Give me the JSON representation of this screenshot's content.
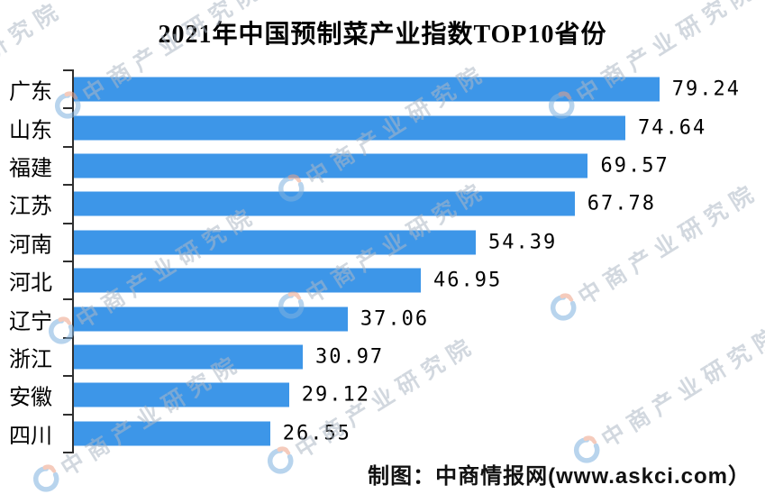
{
  "title": "2021年中国预制菜产业指数TOP10省份",
  "chart_data": {
    "type": "bar",
    "orientation": "horizontal",
    "title": "2021年中国预制菜产业指数TOP10省份",
    "categories": [
      "广东",
      "山东",
      "福建",
      "江苏",
      "河南",
      "河北",
      "辽宁",
      "浙江",
      "安徽",
      "四川"
    ],
    "values": [
      79.24,
      74.64,
      69.57,
      67.78,
      54.39,
      46.95,
      37.06,
      30.97,
      29.12,
      26.55
    ],
    "value_labels": [
      "79.24",
      "74.64",
      "69.57",
      "67.78",
      "54.39",
      "46.95",
      "37.06",
      "30.97",
      "29.12",
      "26.55"
    ],
    "xlabel": "",
    "ylabel": "",
    "xlim_estimated": [
      0,
      91
    ],
    "grid": false,
    "legend": false,
    "bar_color": "#3d96e8",
    "sort": "descending"
  },
  "footer": {
    "credit": "制图：中商情报网(www.askci.com）"
  },
  "watermark": {
    "text": "中商产业研究院",
    "logo": "askci-logo"
  },
  "colors": {
    "bar": "#3d96e8",
    "axis": "#2f2f2f",
    "text": "#000000",
    "watermark": "#b9c3cd",
    "background": "#ffffff"
  }
}
